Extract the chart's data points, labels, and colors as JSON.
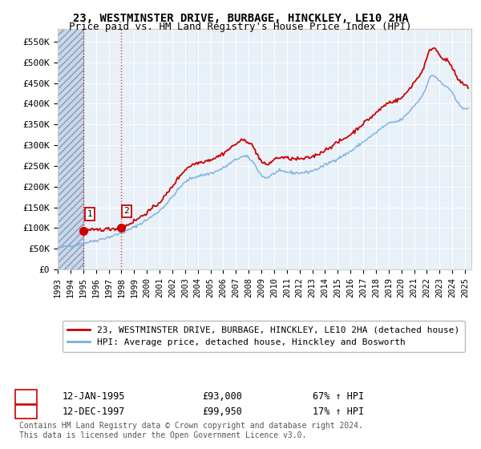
{
  "title": "23, WESTMINSTER DRIVE, BURBAGE, HINCKLEY, LE10 2HA",
  "subtitle": "Price paid vs. HM Land Registry's House Price Index (HPI)",
  "ylabel_ticks": [
    "£0",
    "£50K",
    "£100K",
    "£150K",
    "£200K",
    "£250K",
    "£300K",
    "£350K",
    "£400K",
    "£450K",
    "£500K",
    "£550K"
  ],
  "ytick_values": [
    0,
    50000,
    100000,
    150000,
    200000,
    250000,
    300000,
    350000,
    400000,
    450000,
    500000,
    550000
  ],
  "ylim": [
    0,
    580000
  ],
  "xlim_start": 1993.0,
  "xlim_end": 2025.5,
  "sale1_date": 1995.04,
  "sale1_price": 93000,
  "sale1_label": "1",
  "sale2_date": 1997.95,
  "sale2_price": 99950,
  "sale2_label": "2",
  "annotation1_date": "12-JAN-1995",
  "annotation1_price": "£93,000",
  "annotation1_hpi": "67% ↑ HPI",
  "annotation2_date": "12-DEC-1997",
  "annotation2_price": "£99,950",
  "annotation2_hpi": "17% ↑ HPI",
  "legend_property": "23, WESTMINSTER DRIVE, BURBAGE, HINCKLEY, LE10 2HA (detached house)",
  "legend_hpi": "HPI: Average price, detached house, Hinckley and Bosworth",
  "copyright": "Contains HM Land Registry data © Crown copyright and database right 2024.\nThis data is licensed under the Open Government Licence v3.0.",
  "property_line_color": "#cc0000",
  "hpi_line_color": "#7aaddd",
  "sale_marker_color": "#cc0000",
  "background_color": "#ffffff",
  "plot_bg_color": "#e8f0f8",
  "hatch_bg_color": "#c8d8e8",
  "title_fontsize": 10,
  "subtitle_fontsize": 9,
  "tick_fontsize": 8,
  "legend_fontsize": 8,
  "annotation_fontsize": 8.5,
  "hpi_key_x": [
    1993.0,
    1994.0,
    1995.0,
    1996.0,
    1997.0,
    1998.0,
    1999.0,
    2000.0,
    2001.0,
    2002.0,
    2003.0,
    2004.0,
    2005.0,
    2006.0,
    2007.0,
    2007.8,
    2008.5,
    2009.0,
    2009.5,
    2010.0,
    2011.0,
    2012.0,
    2013.0,
    2014.0,
    2015.0,
    2016.0,
    2017.0,
    2018.0,
    2019.0,
    2020.0,
    2021.0,
    2021.8,
    2022.3,
    2022.9,
    2023.3,
    2023.8,
    2024.3,
    2024.8,
    2025.3
  ],
  "hpi_key_y": [
    52000,
    57000,
    63000,
    70000,
    78000,
    88000,
    102000,
    120000,
    142000,
    175000,
    210000,
    225000,
    232000,
    245000,
    265000,
    272000,
    252000,
    228000,
    222000,
    232000,
    235000,
    233000,
    238000,
    252000,
    268000,
    285000,
    308000,
    330000,
    352000,
    362000,
    395000,
    430000,
    465000,
    458000,
    445000,
    435000,
    408000,
    392000,
    385000
  ]
}
